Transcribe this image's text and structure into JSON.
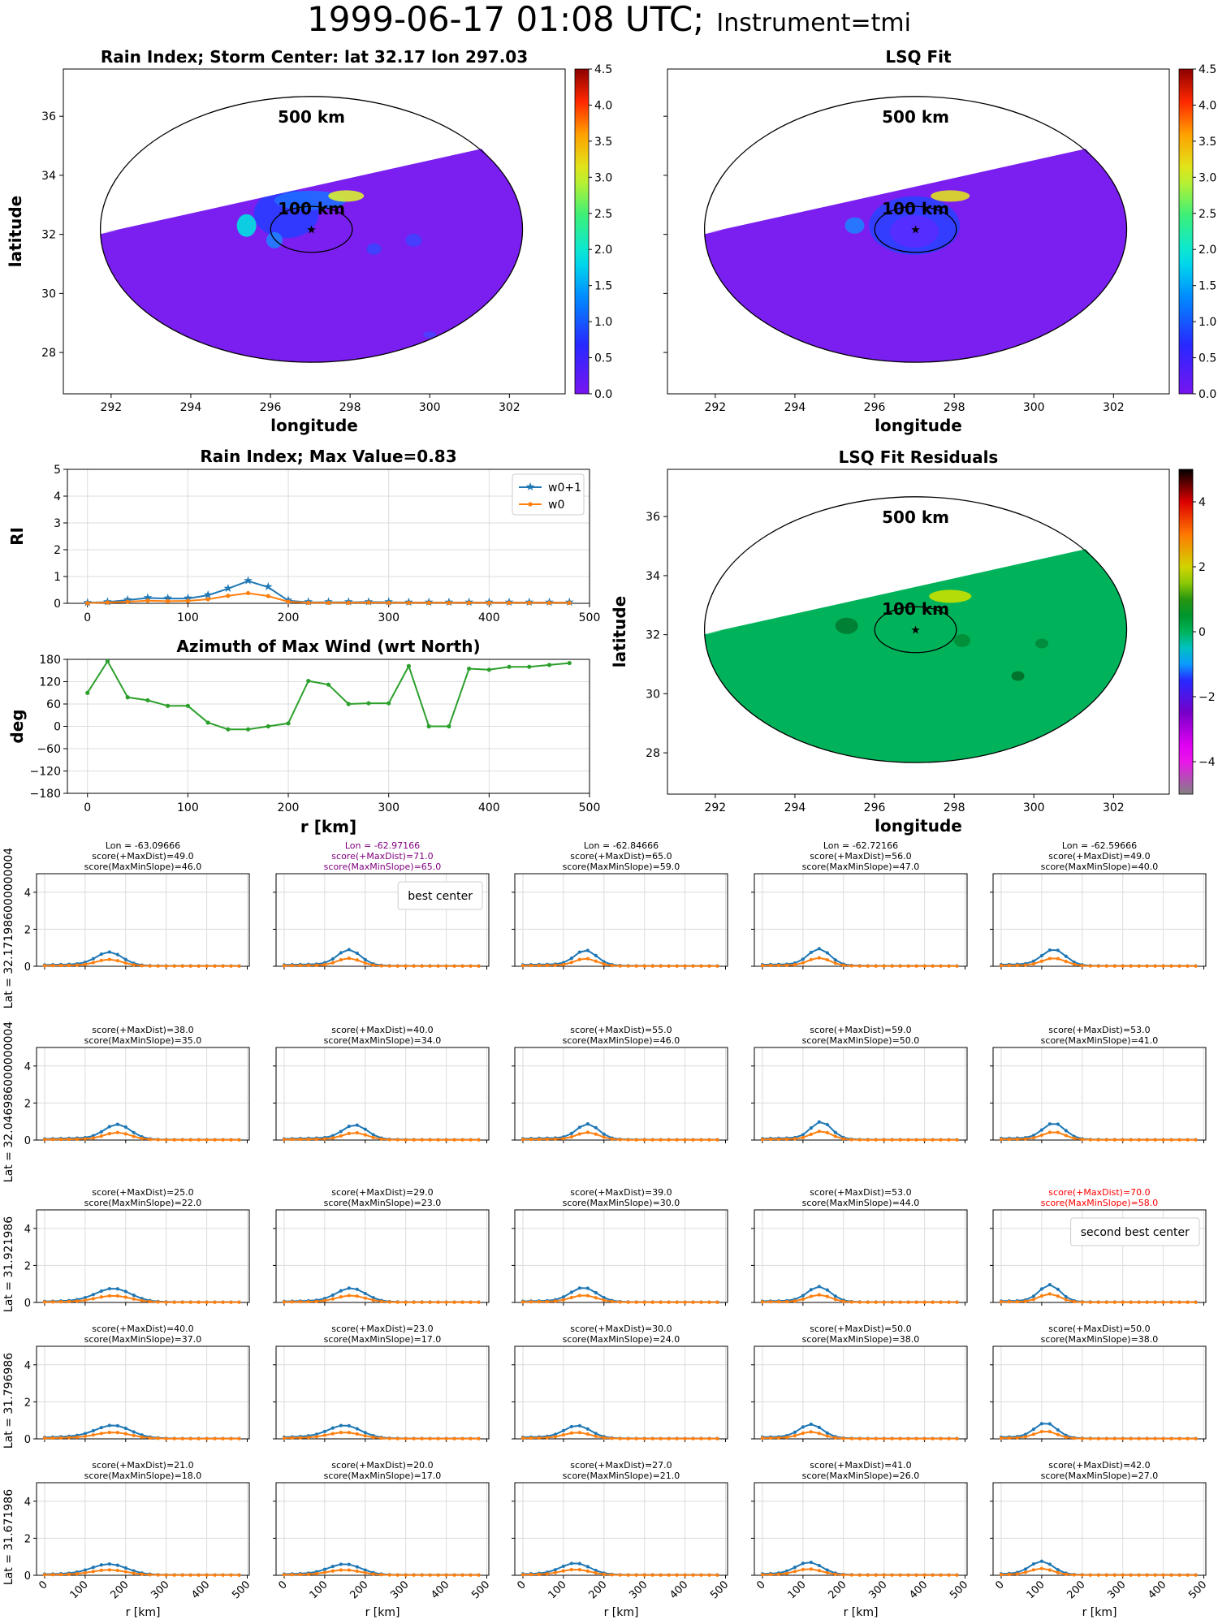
{
  "figure": {
    "title_main": "1999-06-17 01:08 UTC;",
    "title_instrument": "Instrument=tmi"
  },
  "colors": {
    "w0p1": "#1f77b4",
    "w0": "#ff7f0e",
    "azimuth": "#2ca02c",
    "best": "#800080",
    "second": "#ff0000",
    "field_low": "#7a1ff0",
    "residual_field": "#00b35a"
  },
  "maps": [
    {
      "title": "Rain Index; Storm Center: lat 32.17 lon 297.03",
      "xlabel": "longitude",
      "ylabel": "latitude",
      "xticks": [
        292,
        294,
        296,
        298,
        300,
        302
      ],
      "yticks": [
        28,
        30,
        32,
        34,
        36
      ],
      "xlim": [
        290.8,
        303.4
      ],
      "ylim": [
        26.6,
        37.6
      ],
      "center": [
        297.03,
        32.17
      ],
      "circles": [
        {
          "label": "500 km"
        },
        {
          "label": "100 km"
        }
      ],
      "colorbar": {
        "ticks": [
          "0.0",
          "0.5",
          "1.0",
          "1.5",
          "2.0",
          "2.5",
          "3.0",
          "3.5",
          "4.0",
          "4.5"
        ],
        "range": [
          0,
          4.5
        ],
        "type": "jet"
      }
    },
    {
      "title": "LSQ Fit",
      "xlabel": "longitude",
      "ylabel": "",
      "xticks": [
        292,
        294,
        296,
        298,
        300,
        302
      ],
      "yticks": [
        28,
        30,
        32,
        34,
        36
      ],
      "xlim": [
        290.8,
        303.4
      ],
      "ylim": [
        26.6,
        37.6
      ],
      "center": [
        297.03,
        32.17
      ],
      "circles": [
        {
          "label": "500 km"
        },
        {
          "label": "100 km"
        }
      ],
      "colorbar": {
        "ticks": [
          "0.0",
          "0.5",
          "1.0",
          "1.5",
          "2.0",
          "2.5",
          "3.0",
          "3.5",
          "4.0",
          "4.5"
        ],
        "range": [
          0,
          4.5
        ],
        "type": "jet"
      }
    },
    {
      "title": "LSQ Fit Residuals",
      "xlabel": "longitude",
      "ylabel": "latitude",
      "xticks": [
        292,
        294,
        296,
        298,
        300,
        302
      ],
      "yticks": [
        28,
        30,
        32,
        34,
        36
      ],
      "xlim": [
        290.8,
        303.4
      ],
      "ylim": [
        26.6,
        37.6
      ],
      "center": [
        297.03,
        32.17
      ],
      "circles": [
        {
          "label": "500 km"
        },
        {
          "label": "100 km"
        }
      ],
      "colorbar": {
        "ticks": [
          "−4",
          "−2",
          "0",
          "2",
          "4"
        ],
        "range": [
          -5,
          5
        ],
        "type": "diverging"
      }
    }
  ],
  "chart_data": [
    {
      "type": "line",
      "title": "Rain Index; Max Value=0.83",
      "xlabel": "",
      "ylabel": "RI",
      "xlim": [
        -20,
        500
      ],
      "ylim": [
        0,
        5
      ],
      "xticks": [
        0,
        100,
        200,
        300,
        400,
        500
      ],
      "yticks": [
        0,
        1,
        2,
        3,
        4,
        5
      ],
      "grid": true,
      "legend": "top-right",
      "x": [
        0,
        20,
        40,
        60,
        80,
        100,
        120,
        140,
        160,
        180,
        200,
        220,
        240,
        260,
        280,
        300,
        320,
        340,
        360,
        380,
        400,
        420,
        440,
        460,
        480
      ],
      "series": [
        {
          "name": "w0+1",
          "color": "#1f77b4",
          "marker": "star",
          "values": [
            0.02,
            0.05,
            0.12,
            0.2,
            0.18,
            0.18,
            0.3,
            0.55,
            0.83,
            0.6,
            0.1,
            0.04,
            0.04,
            0.04,
            0.05,
            0.04,
            0.03,
            0.03,
            0.03,
            0.03,
            0.03,
            0.03,
            0.03,
            0.03,
            0.03
          ]
        },
        {
          "name": "w0",
          "color": "#ff7f0e",
          "marker": "dot",
          "values": [
            0.01,
            0.03,
            0.06,
            0.1,
            0.08,
            0.09,
            0.15,
            0.28,
            0.38,
            0.27,
            0.06,
            0.02,
            0.02,
            0.02,
            0.03,
            0.02,
            0.02,
            0.02,
            0.02,
            0.02,
            0.02,
            0.02,
            0.02,
            0.02,
            0.02
          ]
        }
      ]
    },
    {
      "type": "line",
      "title": "Azimuth of Max Wind (wrt North)",
      "xlabel": "r [km]",
      "ylabel": "deg",
      "xlim": [
        -20,
        500
      ],
      "ylim": [
        -180,
        180
      ],
      "xticks": [
        0,
        100,
        200,
        300,
        400,
        500
      ],
      "yticks": [
        -180,
        -120,
        -60,
        0,
        60,
        120,
        180
      ],
      "grid": true,
      "x": [
        0,
        20,
        40,
        60,
        80,
        100,
        120,
        140,
        160,
        180,
        200,
        220,
        240,
        260,
        280,
        300,
        320,
        340,
        360,
        380,
        400,
        420,
        440,
        460,
        480
      ],
      "series": [
        {
          "name": "",
          "color": "#2ca02c",
          "values": [
            90,
            175,
            78,
            70,
            55,
            55,
            10,
            -8,
            -8,
            0,
            8,
            122,
            112,
            60,
            62,
            62,
            162,
            0,
            0,
            155,
            152,
            160,
            160,
            165,
            170
          ]
        }
      ]
    },
    {
      "type": "line",
      "grid_shape": [
        5,
        5
      ],
      "xlabel": "r [km]",
      "xticks": [
        0,
        100,
        200,
        300,
        400,
        500
      ],
      "yticks": [
        0,
        2,
        4
      ],
      "xlim": [
        -20,
        505
      ],
      "ylim": [
        0,
        5
      ],
      "x": [
        0,
        20,
        40,
        60,
        80,
        100,
        120,
        140,
        160,
        180,
        200,
        220,
        240,
        260,
        280,
        300,
        320,
        340,
        360,
        380,
        400,
        420,
        440,
        460,
        480
      ],
      "row_labels": [
        "Lat = 32.171986000000004",
        "Lat = 32.046986000000004",
        "Lat = 31.921986",
        "Lat = 31.796986",
        "Lat = 31.671986"
      ],
      "cells": [
        {
          "lon": "Lon = -63.09666",
          "s1": "score(+MaxDist)=49.0",
          "s2": "score(MaxMinSlope)=46.0",
          "peak": 0.7,
          "pr": 160,
          "w": 45,
          "base": 0.08
        },
        {
          "lon": "Lon = -62.97166",
          "s1": "score(+MaxDist)=71.0",
          "s2": "score(MaxMinSlope)=65.0",
          "peak": 0.83,
          "pr": 160,
          "w": 40,
          "base": 0.08,
          "hl": "best",
          "legend": "best center"
        },
        {
          "lon": "Lon = -62.84666",
          "s1": "score(+MaxDist)=65.0",
          "s2": "score(MaxMinSlope)=59.0",
          "peak": 0.8,
          "pr": 155,
          "w": 38,
          "base": 0.08
        },
        {
          "lon": "Lon = -62.72166",
          "s1": "score(+MaxDist)=56.0",
          "s2": "score(MaxMinSlope)=47.0",
          "peak": 0.88,
          "pr": 140,
          "w": 38,
          "base": 0.08
        },
        {
          "lon": "Lon = -62.59666",
          "s1": "score(+MaxDist)=49.0",
          "s2": "score(MaxMinSlope)=40.0",
          "peak": 0.85,
          "pr": 130,
          "w": 40,
          "base": 0.08
        },
        {
          "lon": "",
          "s1": "score(+MaxDist)=38.0",
          "s2": "score(MaxMinSlope)=35.0",
          "peak": 0.78,
          "pr": 180,
          "w": 45,
          "base": 0.08
        },
        {
          "lon": "",
          "s1": "score(+MaxDist)=40.0",
          "s2": "score(MaxMinSlope)=34.0",
          "peak": 0.75,
          "pr": 175,
          "w": 42,
          "base": 0.08
        },
        {
          "lon": "",
          "s1": "score(+MaxDist)=55.0",
          "s2": "score(MaxMinSlope)=46.0",
          "peak": 0.8,
          "pr": 160,
          "w": 38,
          "base": 0.08
        },
        {
          "lon": "",
          "s1": "score(+MaxDist)=59.0",
          "s2": "score(MaxMinSlope)=50.0",
          "peak": 0.92,
          "pr": 145,
          "w": 36,
          "base": 0.08
        },
        {
          "lon": "",
          "s1": "score(+MaxDist)=53.0",
          "s2": "score(MaxMinSlope)=41.0",
          "peak": 0.85,
          "pr": 130,
          "w": 38,
          "base": 0.08
        },
        {
          "lon": "",
          "s1": "score(+MaxDist)=25.0",
          "s2": "score(MaxMinSlope)=22.0",
          "peak": 0.7,
          "pr": 170,
          "w": 60,
          "base": 0.06
        },
        {
          "lon": "",
          "s1": "score(+MaxDist)=29.0",
          "s2": "score(MaxMinSlope)=23.0",
          "peak": 0.72,
          "pr": 165,
          "w": 50,
          "base": 0.06
        },
        {
          "lon": "",
          "s1": "score(+MaxDist)=39.0",
          "s2": "score(MaxMinSlope)=30.0",
          "peak": 0.75,
          "pr": 150,
          "w": 45,
          "base": 0.06
        },
        {
          "lon": "",
          "s1": "score(+MaxDist)=53.0",
          "s2": "score(MaxMinSlope)=44.0",
          "peak": 0.8,
          "pr": 140,
          "w": 40,
          "base": 0.06
        },
        {
          "lon": "",
          "s1": "score(+MaxDist)=70.0",
          "s2": "score(MaxMinSlope)=58.0",
          "peak": 0.9,
          "pr": 120,
          "w": 36,
          "base": 0.06,
          "hl": "second",
          "legend": "second best center"
        },
        {
          "lon": "",
          "s1": "score(+MaxDist)=40.0",
          "s2": "score(MaxMinSlope)=37.0",
          "peak": 0.65,
          "pr": 170,
          "w": 60,
          "base": 0.1
        },
        {
          "lon": "",
          "s1": "score(+MaxDist)=23.0",
          "s2": "score(MaxMinSlope)=17.0",
          "peak": 0.65,
          "pr": 150,
          "w": 55,
          "base": 0.1
        },
        {
          "lon": "",
          "s1": "score(+MaxDist)=30.0",
          "s2": "score(MaxMinSlope)=24.0",
          "peak": 0.65,
          "pr": 135,
          "w": 45,
          "base": 0.08
        },
        {
          "lon": "",
          "s1": "score(+MaxDist)=50.0",
          "s2": "score(MaxMinSlope)=38.0",
          "peak": 0.72,
          "pr": 120,
          "w": 40,
          "base": 0.08
        },
        {
          "lon": "",
          "s1": "score(+MaxDist)=50.0",
          "s2": "score(MaxMinSlope)=38.0",
          "peak": 0.8,
          "pr": 110,
          "w": 38,
          "base": 0.08
        },
        {
          "lon": "",
          "s1": "score(+MaxDist)=21.0",
          "s2": "score(MaxMinSlope)=18.0",
          "peak": 0.55,
          "pr": 160,
          "w": 60,
          "base": 0.06
        },
        {
          "lon": "",
          "s1": "score(+MaxDist)=20.0",
          "s2": "score(MaxMinSlope)=17.0",
          "peak": 0.55,
          "pr": 150,
          "w": 55,
          "base": 0.06
        },
        {
          "lon": "",
          "s1": "score(+MaxDist)=27.0",
          "s2": "score(MaxMinSlope)=21.0",
          "peak": 0.6,
          "pr": 130,
          "w": 50,
          "base": 0.06
        },
        {
          "lon": "",
          "s1": "score(+MaxDist)=41.0",
          "s2": "score(MaxMinSlope)=26.0",
          "peak": 0.65,
          "pr": 115,
          "w": 45,
          "base": 0.06
        },
        {
          "lon": "",
          "s1": "score(+MaxDist)=42.0",
          "s2": "score(MaxMinSlope)=27.0",
          "peak": 0.7,
          "pr": 100,
          "w": 40,
          "base": 0.06
        }
      ]
    }
  ]
}
